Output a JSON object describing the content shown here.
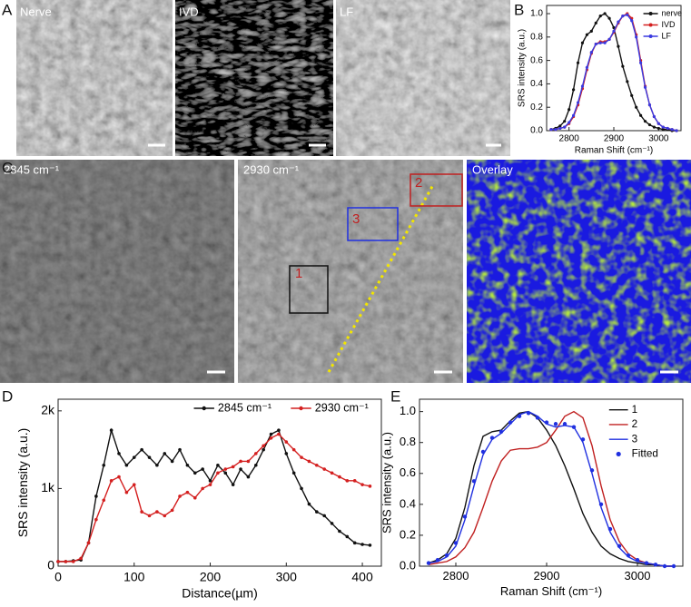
{
  "figure": {
    "panel_labels": [
      "A",
      "B",
      "C",
      "D",
      "E"
    ],
    "images": [
      {
        "label": "Nerve"
      },
      {
        "label": "IVD"
      },
      {
        "label": "LF"
      },
      {
        "label": "2845 cm⁻¹"
      },
      {
        "label": "2930 cm⁻¹"
      },
      {
        "label": "Overlay"
      }
    ],
    "rois": [
      "1",
      "2",
      "3"
    ]
  },
  "chart_data": [
    {
      "type": "line",
      "xlabel": "Raman Shift (cm⁻¹)",
      "ylabel": "SRS intensity (a.u.)",
      "xlim": [
        2750,
        3050
      ],
      "xticks": [
        2800,
        2900,
        3000
      ],
      "ylim": [
        0,
        1.07
      ],
      "yticks": [
        {
          "value": 0,
          "label": "0.0"
        },
        0.2,
        0.4,
        0.6,
        0.8,
        {
          "value": 1,
          "label": "1.0"
        }
      ],
      "legend": "upper right",
      "x": [
        2760,
        2770,
        2780,
        2790,
        2800,
        2810,
        2820,
        2830,
        2840,
        2850,
        2860,
        2870,
        2880,
        2890,
        2900,
        2910,
        2920,
        2930,
        2940,
        2950,
        2960,
        2970,
        2980,
        2990,
        3000,
        3010,
        3020,
        3030,
        3040
      ],
      "series": [
        {
          "name": "nerve",
          "color": "#111111",
          "style": "line+markers",
          "values": [
            0.01,
            0.02,
            0.04,
            0.08,
            0.18,
            0.35,
            0.58,
            0.75,
            0.82,
            0.85,
            0.92,
            0.98,
            1.0,
            0.96,
            0.88,
            0.72,
            0.55,
            0.42,
            0.3,
            0.2,
            0.13,
            0.08,
            0.05,
            0.03,
            0.02,
            0.01,
            0.01,
            0.0,
            0.0
          ]
        },
        {
          "name": "IVD",
          "color": "#d42020",
          "style": "line+markers",
          "values": [
            0.01,
            0.01,
            0.02,
            0.03,
            0.06,
            0.12,
            0.22,
            0.36,
            0.52,
            0.66,
            0.74,
            0.76,
            0.76,
            0.78,
            0.84,
            0.92,
            0.98,
            1.0,
            0.96,
            0.82,
            0.6,
            0.38,
            0.22,
            0.12,
            0.06,
            0.03,
            0.02,
            0.01,
            0.0
          ]
        },
        {
          "name": "LF",
          "color": "#3a3ae0",
          "style": "line+markers",
          "values": [
            0.01,
            0.01,
            0.02,
            0.03,
            0.07,
            0.13,
            0.24,
            0.38,
            0.54,
            0.67,
            0.74,
            0.75,
            0.75,
            0.78,
            0.85,
            0.93,
            0.98,
            0.99,
            0.94,
            0.8,
            0.58,
            0.37,
            0.22,
            0.12,
            0.06,
            0.03,
            0.02,
            0.01,
            0.0
          ]
        }
      ]
    },
    {
      "type": "line",
      "xlabel": "Distance(µm)",
      "ylabel": "SRS intensity (a.u.)",
      "xlim": [
        0,
        425
      ],
      "xticks": [
        0,
        100,
        200,
        300,
        400
      ],
      "ylim": [
        0,
        2150
      ],
      "yticks": [
        0,
        {
          "value": 1000,
          "label": "1k"
        },
        {
          "value": 2000,
          "label": "2k"
        }
      ],
      "legend": "top",
      "x": [
        0,
        10,
        20,
        30,
        40,
        50,
        60,
        70,
        80,
        90,
        100,
        110,
        120,
        130,
        140,
        150,
        160,
        170,
        180,
        190,
        200,
        210,
        220,
        230,
        240,
        250,
        260,
        270,
        280,
        290,
        300,
        310,
        320,
        330,
        340,
        350,
        360,
        370,
        380,
        390,
        400,
        410
      ],
      "series": [
        {
          "name": "2845 cm⁻¹",
          "color": "#111111",
          "style": "line+markers",
          "values": [
            60,
            60,
            70,
            80,
            300,
            900,
            1300,
            1750,
            1450,
            1300,
            1400,
            1500,
            1400,
            1300,
            1450,
            1350,
            1500,
            1300,
            1200,
            1250,
            1100,
            1300,
            1200,
            1050,
            1250,
            1150,
            1300,
            1500,
            1700,
            1750,
            1450,
            1200,
            1000,
            800,
            700,
            650,
            550,
            450,
            380,
            300,
            280,
            270
          ]
        },
        {
          "name": "2930 cm⁻¹",
          "color": "#d42020",
          "style": "line+markers",
          "values": [
            60,
            60,
            60,
            100,
            300,
            600,
            850,
            1100,
            1150,
            950,
            1050,
            700,
            650,
            700,
            650,
            720,
            900,
            950,
            880,
            1000,
            1050,
            1200,
            1250,
            1280,
            1350,
            1350,
            1450,
            1550,
            1650,
            1700,
            1600,
            1500,
            1400,
            1350,
            1300,
            1250,
            1200,
            1150,
            1100,
            1100,
            1050,
            1030
          ]
        }
      ]
    },
    {
      "type": "line",
      "xlabel": "Raman Shift (cm⁻¹)",
      "ylabel": "SRS intensity (a.u.)",
      "xlim": [
        2760,
        3050
      ],
      "xticks": [
        2800,
        2900,
        3000
      ],
      "ylim": [
        0,
        1.08
      ],
      "yticks": [
        {
          "value": 0,
          "label": "0.0"
        },
        0.2,
        0.4,
        0.6,
        0.8,
        {
          "value": 1,
          "label": "1.0"
        }
      ],
      "legend": "upper right",
      "x": [
        2770,
        2780,
        2790,
        2800,
        2810,
        2820,
        2830,
        2840,
        2850,
        2860,
        2870,
        2880,
        2890,
        2900,
        2910,
        2920,
        2930,
        2940,
        2950,
        2960,
        2970,
        2980,
        2990,
        3000,
        3010,
        3020,
        3030,
        3040
      ],
      "series": [
        {
          "name": "1",
          "color": "#111111",
          "style": "line",
          "values": [
            0.02,
            0.04,
            0.08,
            0.18,
            0.38,
            0.65,
            0.84,
            0.87,
            0.88,
            0.94,
            0.99,
            1.0,
            0.96,
            0.88,
            0.78,
            0.65,
            0.5,
            0.34,
            0.22,
            0.13,
            0.08,
            0.05,
            0.03,
            0.02,
            0.01,
            0.01,
            0.0,
            0.0
          ]
        },
        {
          "name": "2",
          "color": "#c02020",
          "style": "line",
          "values": [
            0.01,
            0.02,
            0.03,
            0.06,
            0.12,
            0.22,
            0.38,
            0.55,
            0.68,
            0.75,
            0.76,
            0.76,
            0.77,
            0.8,
            0.88,
            0.97,
            1.0,
            0.96,
            0.78,
            0.52,
            0.3,
            0.16,
            0.08,
            0.04,
            0.02,
            0.01,
            0.0,
            0.0
          ]
        },
        {
          "name": "3",
          "color": "#2030e0",
          "style": "line",
          "values": [
            0.02,
            0.03,
            0.06,
            0.13,
            0.3,
            0.52,
            0.72,
            0.82,
            0.86,
            0.92,
            0.98,
            1.0,
            0.97,
            0.92,
            0.9,
            0.91,
            0.9,
            0.8,
            0.6,
            0.38,
            0.22,
            0.12,
            0.06,
            0.03,
            0.02,
            0.01,
            0.0,
            0.0
          ]
        },
        {
          "name": "Fitted",
          "color": "#2030e0",
          "style": "markers",
          "values": [
            0.02,
            0.04,
            0.07,
            0.15,
            0.32,
            0.55,
            0.74,
            0.83,
            0.87,
            0.93,
            0.97,
            0.99,
            0.96,
            0.93,
            0.92,
            0.92,
            0.9,
            0.82,
            0.62,
            0.4,
            0.24,
            0.13,
            0.07,
            0.04,
            0.02,
            0.01,
            0.0,
            0.0
          ]
        }
      ]
    }
  ]
}
